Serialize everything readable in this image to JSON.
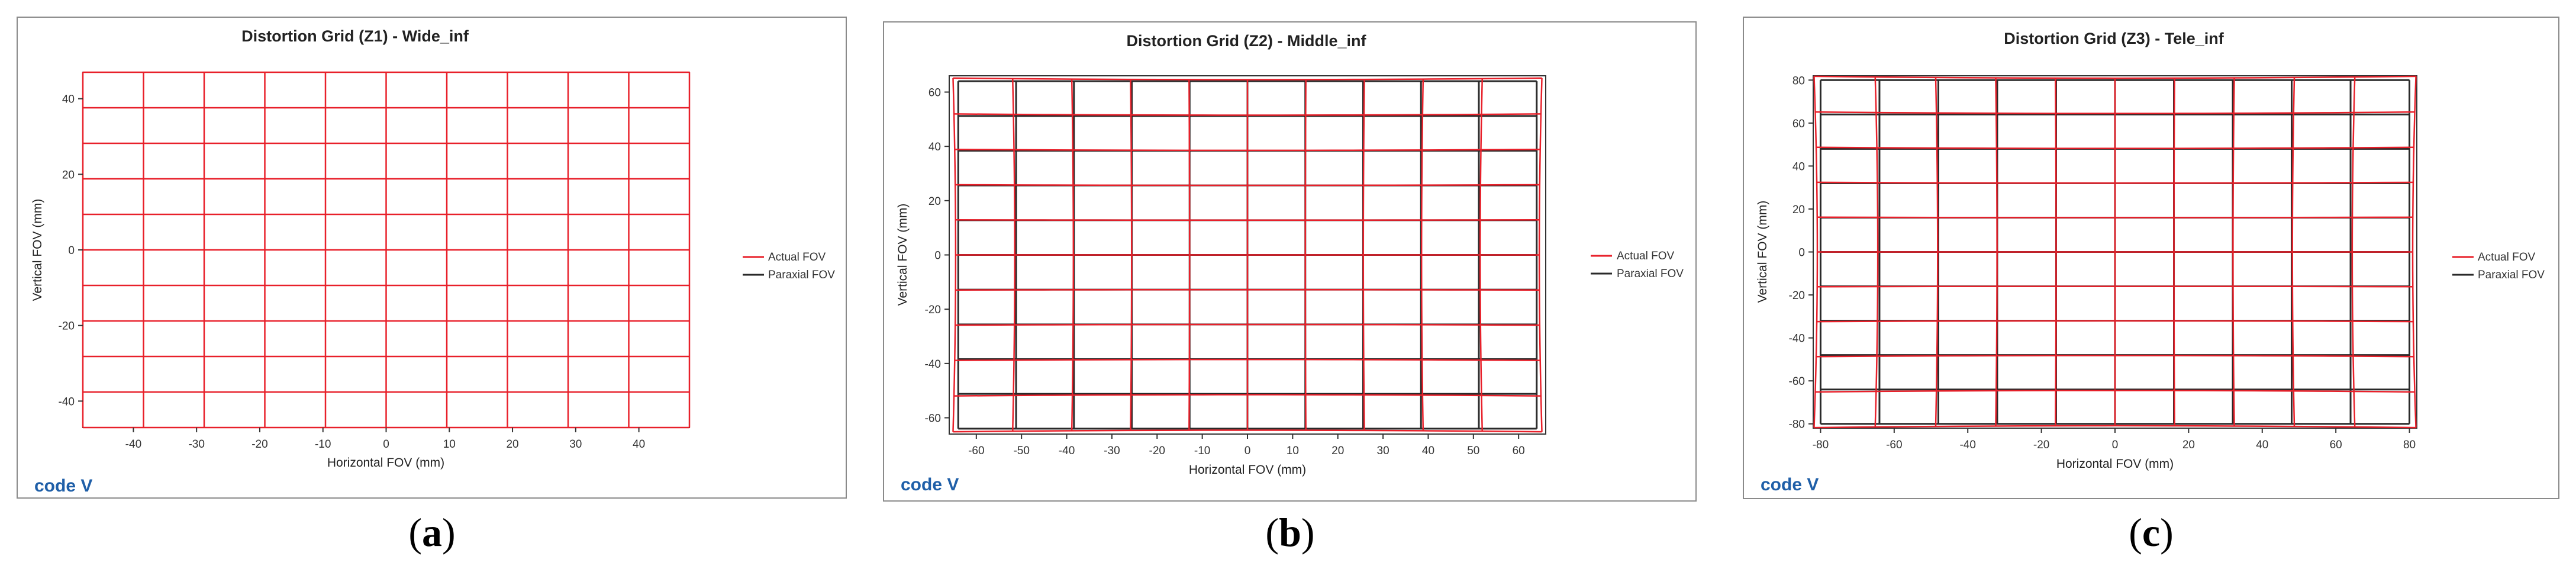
{
  "colors": {
    "actual": "#e8202a",
    "paraxial": "#2a2a2a",
    "frame": "#8a8a8a",
    "logo": "#1f5fa8"
  },
  "logo_text": "code V",
  "charts": [
    {
      "caption_letter": "a",
      "chart_data": {
        "type": "line",
        "title": "Distortion Grid (Z1) - Wide_inf",
        "xlabel": "Horizontal FOV (mm)",
        "ylabel": "Vertical FOV (mm)",
        "xlim": [
          -48,
          48
        ],
        "ylim": [
          -47,
          47
        ],
        "xticks": [
          -40,
          -30,
          -20,
          -10,
          0,
          10,
          20,
          30,
          40
        ],
        "yticks": [
          -40,
          -20,
          0,
          20,
          40
        ],
        "legend": [
          "Actual FOV",
          "Paraxial FOV"
        ],
        "legend_position": "right",
        "paraxial_grid": {
          "x": [
            -48,
            -38.4,
            -28.8,
            -19.2,
            -9.6,
            0,
            9.6,
            19.2,
            28.8,
            38.4,
            48
          ],
          "y": [
            -47,
            -37.6,
            -28.2,
            -18.8,
            -9.4,
            0,
            9.4,
            18.8,
            28.2,
            37.6,
            47
          ]
        },
        "distortion_percent": 0
      }
    },
    {
      "caption_letter": "b",
      "chart_data": {
        "type": "line",
        "title": "Distortion Grid (Z2) - Middle_inf",
        "xlabel": "Horizontal FOV (mm)",
        "ylabel": "Vertical FOV (mm)",
        "xlim": [
          -66,
          66
        ],
        "ylim": [
          -66,
          66
        ],
        "xticks": [
          -60,
          -50,
          -40,
          -30,
          -20,
          -10,
          0,
          10,
          20,
          30,
          40,
          50,
          60
        ],
        "yticks": [
          -60,
          -40,
          -20,
          0,
          20,
          40,
          60
        ],
        "legend": [
          "Actual FOV",
          "Paraxial FOV"
        ],
        "legend_position": "right",
        "paraxial_grid": {
          "x": [
            -64,
            -51.2,
            -38.4,
            -25.6,
            -12.8,
            0,
            12.8,
            25.6,
            38.4,
            51.2,
            64
          ],
          "y": [
            -64,
            -51.2,
            -38.4,
            -25.6,
            -12.8,
            0,
            12.8,
            25.6,
            38.4,
            51.2,
            64
          ]
        },
        "distortion_percent": 1.8
      }
    },
    {
      "caption_letter": "c",
      "chart_data": {
        "type": "line",
        "title": "Distortion Grid (Z3) - Tele_inf",
        "xlabel": "Horizontal FOV (mm)",
        "ylabel": "Vertical FOV (mm)",
        "xlim": [
          -82,
          82
        ],
        "ylim": [
          -82,
          82
        ],
        "xticks": [
          -80,
          -60,
          -40,
          -20,
          0,
          20,
          40,
          60,
          80
        ],
        "yticks": [
          -80,
          -60,
          -40,
          -20,
          0,
          20,
          40,
          60,
          80
        ],
        "legend": [
          "Actual FOV",
          "Paraxial FOV"
        ],
        "legend_position": "right",
        "paraxial_grid": {
          "x": [
            -80,
            -64,
            -48,
            -32,
            -16,
            0,
            16,
            32,
            48,
            64,
            80
          ],
          "y": [
            -80,
            -64,
            -48,
            -32,
            -16,
            0,
            16,
            32,
            48,
            64,
            80
          ]
        },
        "distortion_percent": 2.2
      }
    }
  ]
}
